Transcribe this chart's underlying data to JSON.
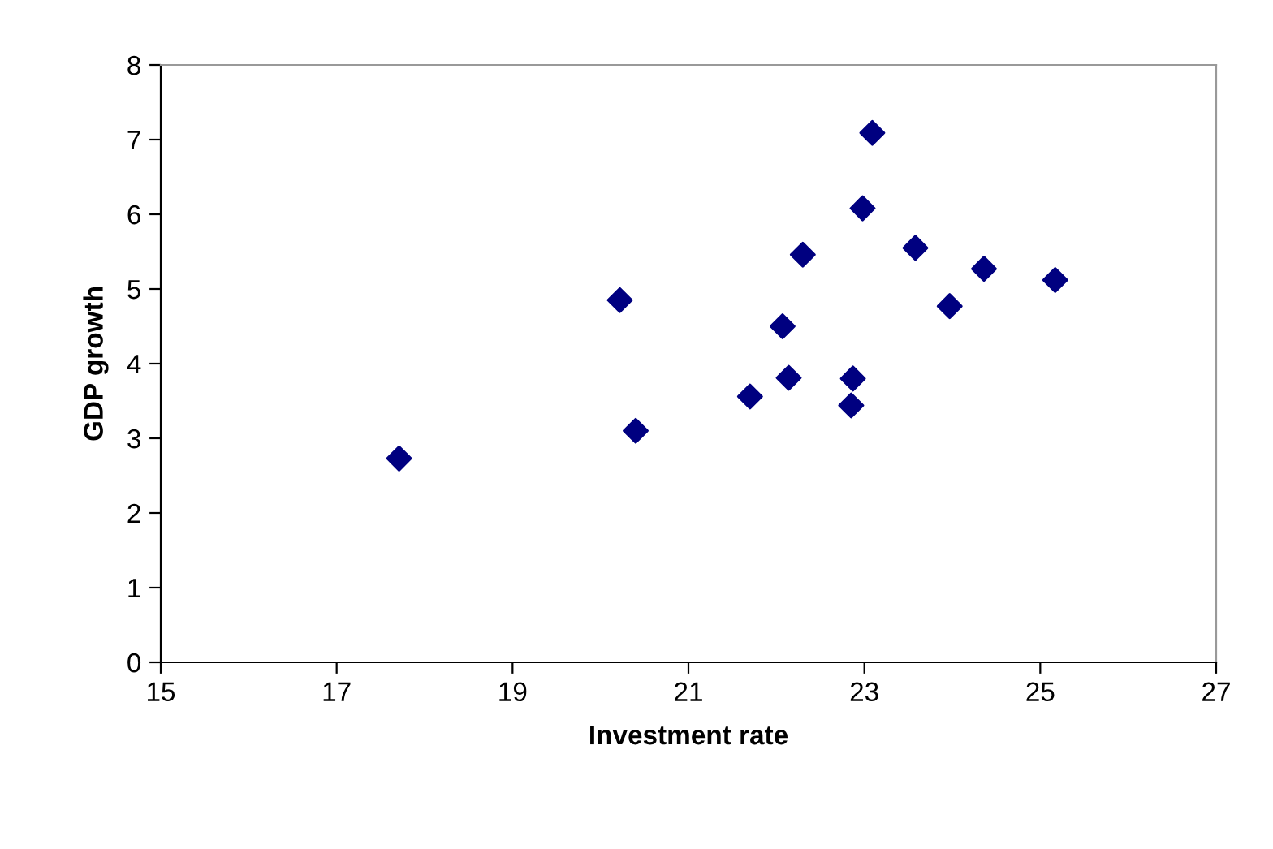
{
  "chart_data": {
    "type": "scatter",
    "xlabel": "Investment rate",
    "ylabel": "GDP growth",
    "x": [
      17.71,
      20.22,
      20.4,
      23.09,
      22.98,
      22.3,
      23.58,
      24.36,
      25.17,
      23.97,
      22.07,
      22.14,
      22.87,
      22.85,
      21.7
    ],
    "values": [
      2.73,
      4.85,
      3.1,
      7.09,
      6.08,
      5.46,
      5.55,
      5.27,
      5.12,
      4.77,
      4.5,
      3.81,
      3.8,
      3.44,
      3.56
    ],
    "color": "#000080",
    "marker": "diamond",
    "xlim": [
      15,
      27
    ],
    "xticks": [
      15,
      17,
      19,
      21,
      23,
      25,
      27
    ],
    "ylim": [
      0,
      8
    ],
    "yticks": [
      0,
      1,
      2,
      3,
      4,
      5,
      6,
      7,
      8
    ],
    "grid": false,
    "legend": false
  }
}
